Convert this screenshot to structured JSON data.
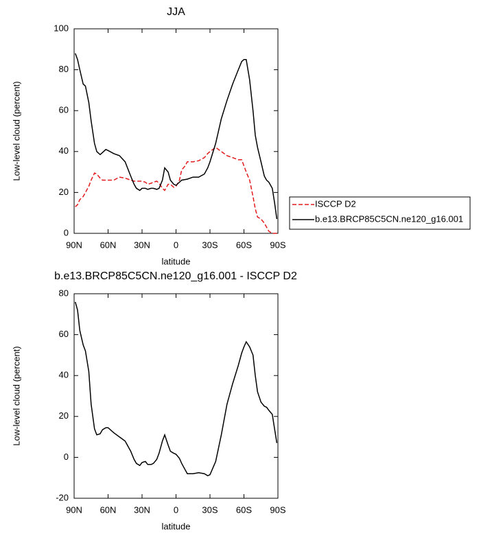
{
  "chart_data": [
    {
      "type": "line",
      "title": "JJA",
      "xlabel": "latitude",
      "ylabel": "Low-level cloud (percent)",
      "x": [
        89,
        87,
        85,
        82,
        80,
        77,
        75,
        72,
        70,
        67,
        65,
        62,
        60,
        55,
        50,
        45,
        40,
        37,
        35,
        32,
        30,
        27,
        25,
        22,
        20,
        17,
        15,
        12,
        10,
        7,
        5,
        2,
        0,
        -3,
        -5,
        -8,
        -10,
        -15,
        -20,
        -25,
        -28,
        -30,
        -35,
        -40,
        -45,
        -50,
        -55,
        -58,
        -60,
        -62,
        -65,
        -68,
        -70,
        -72,
        -75,
        -78,
        -80,
        -82,
        -85,
        -87,
        -89
      ],
      "series": [
        {
          "name": "ISCCP D2",
          "color": "#e41a1c",
          "style": "dashed",
          "values": [
            13,
            14,
            16.5,
            18,
            20,
            23,
            26,
            29.5,
            29,
            27,
            26,
            26,
            26,
            26,
            27.5,
            27,
            26,
            25.5,
            25.5,
            25.5,
            25.5,
            25,
            24,
            24.5,
            25,
            25.5,
            24.5,
            22,
            21,
            24,
            24,
            22.5,
            23,
            26,
            31,
            33,
            35,
            35,
            35.5,
            37,
            39,
            40,
            42,
            40,
            38,
            37,
            36,
            36,
            33,
            30,
            26,
            18,
            12,
            8,
            7,
            5,
            3,
            1,
            0,
            0,
            0
          ]
        },
        {
          "name": "b.e13.BRCP85C5CN.ne120_g16.001",
          "color": "#000000",
          "style": "solid",
          "values": [
            88,
            85,
            80,
            73,
            72,
            64,
            55,
            44,
            40,
            38.5,
            39.5,
            41,
            40.5,
            39,
            38,
            35,
            28,
            24,
            22,
            21,
            22,
            22,
            21.5,
            22,
            22,
            21.5,
            22,
            26,
            32,
            30,
            26,
            24,
            23.5,
            25,
            26,
            26.3,
            26.5,
            27.5,
            27.5,
            29,
            32,
            35,
            44,
            56,
            65,
            73,
            80,
            84,
            85,
            85,
            75,
            60,
            48,
            42,
            35,
            28,
            26,
            25,
            22,
            15,
            7
          ]
        }
      ],
      "xlim": [
        90,
        -90
      ],
      "xticks": [
        {
          "value": 90,
          "label": "90N"
        },
        {
          "value": 60,
          "label": "60N"
        },
        {
          "value": 30,
          "label": "30N"
        },
        0,
        {
          "value": -30,
          "label": "30S"
        },
        {
          "value": -60,
          "label": "60S"
        },
        {
          "value": -90,
          "label": "90S"
        }
      ],
      "ylim": [
        0,
        100
      ],
      "yticks": [
        0,
        20,
        40,
        60,
        80,
        100
      ],
      "legend": "outside-right"
    },
    {
      "type": "line",
      "title": "b.e13.BRCP85C5CN.ne120_g16.001 - ISCCP D2",
      "xlabel": "latitude",
      "ylabel": "Low-level cloud (percent)",
      "x": [
        89,
        87,
        85,
        82,
        80,
        77,
        75,
        72,
        70,
        67,
        65,
        62,
        60,
        55,
        50,
        45,
        40,
        37,
        35,
        32,
        30,
        27,
        25,
        22,
        20,
        17,
        15,
        12,
        10,
        7,
        5,
        2,
        0,
        -3,
        -5,
        -8,
        -10,
        -15,
        -20,
        -25,
        -28,
        -30,
        -35,
        -40,
        -45,
        -50,
        -55,
        -58,
        -60,
        -62,
        -65,
        -68,
        -70,
        -72,
        -75,
        -78,
        -80,
        -82,
        -85,
        -87,
        -89
      ],
      "color": "#000000",
      "values": [
        76,
        72,
        62,
        55,
        52,
        42,
        26,
        14,
        11,
        11.5,
        13.5,
        14.5,
        14.5,
        12,
        10,
        8,
        3,
        -1,
        -3,
        -4,
        -2.5,
        -2,
        -3.5,
        -3.5,
        -3,
        -1,
        2,
        8,
        11,
        6,
        3,
        2,
        1.5,
        -0.5,
        -3,
        -6,
        -8,
        -8,
        -7.5,
        -8,
        -9,
        -8.5,
        -2,
        11,
        26,
        36,
        45,
        51,
        54,
        56.5,
        54,
        50,
        40,
        32,
        27,
        25,
        24.5,
        23,
        21,
        14,
        7
      ],
      "xlim": [
        90,
        -90
      ],
      "xticks": [
        {
          "value": 90,
          "label": "90N"
        },
        {
          "value": 60,
          "label": "60N"
        },
        {
          "value": 30,
          "label": "30N"
        },
        0,
        {
          "value": -30,
          "label": "30S"
        },
        {
          "value": -60,
          "label": "60S"
        },
        {
          "value": -90,
          "label": "90S"
        }
      ],
      "ylim": [
        -20,
        80
      ],
      "yticks": [
        -20,
        0,
        20,
        40,
        60,
        80
      ]
    }
  ]
}
